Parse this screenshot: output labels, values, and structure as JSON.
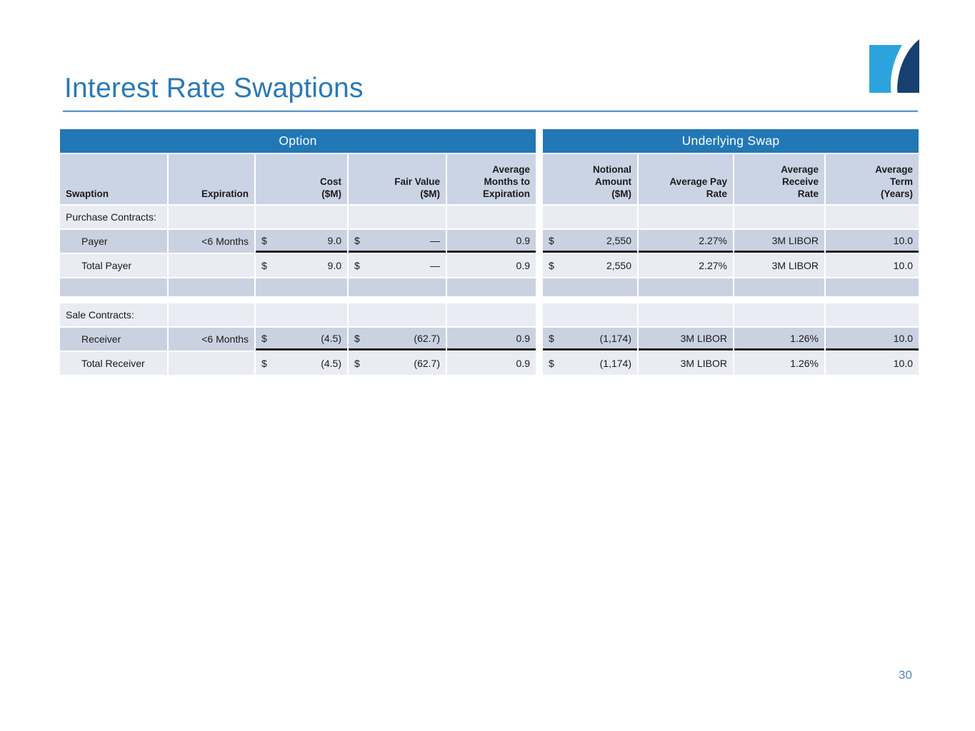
{
  "slide": {
    "title": "Interest Rate Swaptions",
    "page_number": "30"
  },
  "colors": {
    "title_blue": "#2B79B5",
    "banner_blue": "#2178B5",
    "header_cell_bg": "#CBD4E4",
    "row_dark_bg": "#CAD2E2",
    "row_light_bg": "#E9ECF3",
    "rule_blue": "#5E96C5",
    "underline_black": "#1A1A1A",
    "page_number_blue": "#4E86B8",
    "logo_light_blue": "#2BA4DD",
    "logo_navy": "#164070"
  },
  "table": {
    "group_headers": [
      {
        "label": "Option"
      },
      {
        "label": "Underlying Swap"
      }
    ],
    "columns": [
      {
        "label": "Swaption"
      },
      {
        "label": "Expiration"
      },
      {
        "label": "Cost\n($M)"
      },
      {
        "label": "Fair Value\n($M)"
      },
      {
        "label": "Average\nMonths to\nExpiration"
      },
      {
        "label": "Notional\nAmount\n($M)"
      },
      {
        "label": "Average Pay\nRate"
      },
      {
        "label": "Average\nReceive\nRate"
      },
      {
        "label": "Average\nTerm\n(Years)"
      }
    ],
    "rows": [
      {
        "type": "section",
        "shade": "light",
        "cells": [
          {
            "text": "Purchase Contracts:"
          },
          {},
          {},
          {},
          {},
          {},
          {},
          {},
          {}
        ]
      },
      {
        "type": "data",
        "shade": "dark",
        "underline": true,
        "cells": [
          {
            "text": "Payer",
            "indent": true
          },
          {
            "text": "<6 Months",
            "align": "right"
          },
          {
            "dollar": "$",
            "text": "9.0"
          },
          {
            "dollar": "$",
            "text": "—"
          },
          {
            "text": "0.9",
            "align": "right"
          },
          {
            "dollar": "$",
            "text": "2,550"
          },
          {
            "text": "2.27%",
            "align": "right"
          },
          {
            "text": "3M LIBOR",
            "align": "right"
          },
          {
            "text": "10.0",
            "align": "right"
          }
        ]
      },
      {
        "type": "data",
        "shade": "light",
        "cells": [
          {
            "text": "Total Payer",
            "indent": true
          },
          {},
          {
            "dollar": "$",
            "text": "9.0"
          },
          {
            "dollar": "$",
            "text": "—"
          },
          {
            "text": "0.9",
            "align": "right"
          },
          {
            "dollar": "$",
            "text": "2,550"
          },
          {
            "text": "2.27%",
            "align": "right"
          },
          {
            "text": "3M LIBOR",
            "align": "right"
          },
          {
            "text": "10.0",
            "align": "right"
          }
        ]
      },
      {
        "type": "empty",
        "shade": "dark",
        "cells": [
          {},
          {},
          {},
          {},
          {},
          {},
          {},
          {},
          {}
        ]
      },
      {
        "type": "spacer"
      },
      {
        "type": "section",
        "shade": "light",
        "cells": [
          {
            "text": "Sale Contracts:"
          },
          {},
          {},
          {},
          {},
          {},
          {},
          {},
          {}
        ]
      },
      {
        "type": "data",
        "shade": "dark",
        "underline": true,
        "cells": [
          {
            "text": "Receiver",
            "indent": true
          },
          {
            "text": "<6 Months",
            "align": "right"
          },
          {
            "dollar": "$",
            "text": "(4.5)"
          },
          {
            "dollar": "$",
            "text": "(62.7)"
          },
          {
            "text": "0.9",
            "align": "right"
          },
          {
            "dollar": "$",
            "text": "(1,174)"
          },
          {
            "text": "3M LIBOR",
            "align": "right"
          },
          {
            "text": "1.26%",
            "align": "right"
          },
          {
            "text": "10.0",
            "align": "right"
          }
        ]
      },
      {
        "type": "data",
        "shade": "light",
        "cells": [
          {
            "text": "Total Receiver",
            "indent": true
          },
          {},
          {
            "dollar": "$",
            "text": "(4.5)"
          },
          {
            "dollar": "$",
            "text": "(62.7)"
          },
          {
            "text": "0.9",
            "align": "right"
          },
          {
            "dollar": "$",
            "text": "(1,174)"
          },
          {
            "text": "3M LIBOR",
            "align": "right"
          },
          {
            "text": "1.26%",
            "align": "right"
          },
          {
            "text": "10.0",
            "align": "right"
          }
        ]
      }
    ]
  }
}
